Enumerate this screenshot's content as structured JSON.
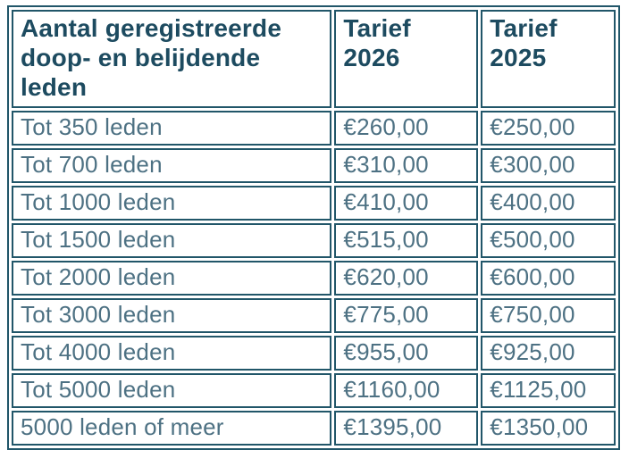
{
  "colors": {
    "border": "#215669",
    "header_text": "#1d4b60",
    "body_text": "#4d7183",
    "background": "#ffffff"
  },
  "table": {
    "header": {
      "col1": "Aantal geregistreerde doop- en belijdende leden",
      "col2": "Tarief 2026",
      "col3": "Tarief 2025"
    },
    "rows": [
      {
        "label": "Tot 350 leden",
        "tarief_2026": "€260,00",
        "tarief_2025": "€250,00"
      },
      {
        "label": "Tot 700 leden",
        "tarief_2026": "€310,00",
        "tarief_2025": "€300,00"
      },
      {
        "label": "Tot 1000 leden",
        "tarief_2026": "€410,00",
        "tarief_2025": "€400,00"
      },
      {
        "label": "Tot 1500 leden",
        "tarief_2026": "€515,00",
        "tarief_2025": "€500,00"
      },
      {
        "label": "Tot 2000 leden",
        "tarief_2026": "€620,00",
        "tarief_2025": "€600,00"
      },
      {
        "label": "Tot 3000 leden",
        "tarief_2026": "€775,00",
        "tarief_2025": "€750,00"
      },
      {
        "label": "Tot 4000 leden",
        "tarief_2026": "€955,00",
        "tarief_2025": "€925,00"
      },
      {
        "label": "Tot 5000 leden",
        "tarief_2026": "€1160,00",
        "tarief_2025": "€1125,00"
      },
      {
        "label": "5000 leden of meer",
        "tarief_2026": "€1395,00",
        "tarief_2025": "€1350,00"
      }
    ]
  }
}
